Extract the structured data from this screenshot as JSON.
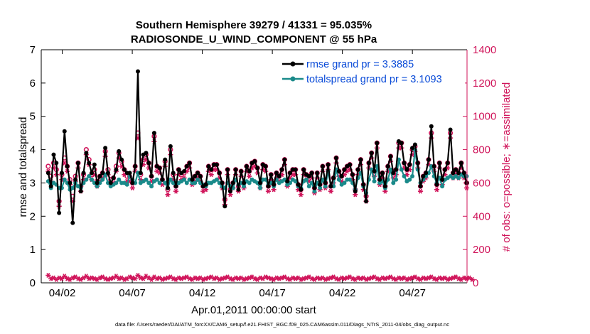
{
  "chart_data": {
    "type": "line",
    "title_line1": "Southern Hemisphere 39279 / 41331 = 95.035%",
    "title_line2": "RADIOSONDE_U_WIND_COMPONENT @ 55 hPa",
    "xlabel": "Apr.01,2011 00:00:00 start",
    "ylabel_left": "rmse and totalspread",
    "ylabel_right": "# of obs: o=possible; ∗=assimilated",
    "x_range": [
      0.5,
      30.9
    ],
    "xtick_days": [
      2,
      7,
      12,
      17,
      22,
      27
    ],
    "xtick_labels": [
      "04/02",
      "04/07",
      "04/12",
      "04/17",
      "04/22",
      "04/27"
    ],
    "ylim_left": [
      0,
      7
    ],
    "yticks_left": [
      "0",
      "1",
      "2",
      "3",
      "4",
      "5",
      "6",
      "7"
    ],
    "ylim_right": [
      0,
      1400
    ],
    "yticks_right": [
      "0",
      "200",
      "400",
      "600",
      "800",
      "1000",
      "1200",
      "1400"
    ],
    "series": [
      {
        "name": "rmse",
        "legend": "rmse grand pr = 3.3885",
        "color": "#000000",
        "values": [
          3.3,
          2.9,
          3.85,
          3.6,
          2.1,
          3.3,
          4.55,
          3.5,
          3.0,
          1.8,
          3.1,
          3.6,
          2.75,
          3.3,
          3.9,
          3.6,
          3.3,
          3.55,
          3.0,
          3.2,
          3.3,
          4.05,
          3.3,
          3.0,
          3.15,
          3.4,
          3.95,
          3.7,
          3.4,
          3.3,
          3.3,
          3.0,
          3.5,
          6.35,
          3.3,
          3.85,
          3.9,
          3.6,
          3.2,
          4.5,
          3.5,
          3.45,
          3.1,
          3.7,
          2.85,
          4.1,
          3.3,
          2.9,
          3.4,
          3.3,
          3.35,
          3.5,
          3.6,
          3.1,
          3.2,
          3.3,
          3.2,
          2.9,
          2.95,
          3.5,
          3.4,
          3.55,
          3.55,
          3.3,
          3.0,
          2.3,
          3.4,
          2.75,
          3.0,
          3.4,
          2.8,
          3.35,
          3.0,
          3.5,
          3.35,
          3.6,
          3.65,
          3.45,
          3.0,
          3.55,
          3.5,
          2.9,
          3.25,
          2.95,
          3.3,
          3.2,
          3.4,
          3.7,
          3.05,
          3.3,
          3.4,
          3.4,
          2.95,
          2.8,
          3.4,
          3.25,
          3.2,
          3.3,
          2.85,
          3.3,
          2.95,
          3.5,
          3.0,
          3.55,
          2.9,
          3.15,
          3.75,
          3.35,
          3.2,
          3.4,
          3.5,
          3.55,
          3.25,
          2.75,
          3.4,
          3.7,
          2.95,
          2.45,
          3.6,
          3.9,
          3.35,
          4.2,
          3.1,
          3.3,
          2.9,
          3.5,
          3.8,
          3.3,
          3.4,
          4.25,
          4.2,
          3.6,
          3.4,
          3.55,
          4.05,
          4.15,
          3.6,
          2.9,
          3.2,
          3.3,
          3.7,
          4.7,
          3.5,
          2.95,
          3.6,
          3.1,
          3.4,
          3.6,
          4.6,
          3.3,
          3.4,
          3.3,
          3.6,
          3.3,
          3.0
        ]
      },
      {
        "name": "totalspread",
        "legend": "totalspread grand pr = 3.1093",
        "color": "#1a8a8a",
        "values": [
          3.05,
          2.85,
          3.0,
          2.95,
          2.85,
          2.85,
          3.1,
          3.0,
          2.8,
          2.85,
          3.0,
          2.9,
          2.85,
          3.0,
          3.1,
          3.2,
          3.1,
          3.0,
          2.9,
          3.0,
          3.1,
          3.25,
          3.0,
          2.9,
          2.95,
          3.0,
          3.1,
          3.0,
          3.0,
          2.95,
          3.2,
          3.1,
          3.0,
          3.3,
          3.0,
          3.05,
          3.1,
          3.0,
          2.9,
          3.05,
          3.1,
          3.0,
          3.1,
          3.0,
          2.85,
          3.1,
          3.0,
          2.9,
          3.0,
          3.05,
          3.1,
          3.0,
          3.1,
          3.0,
          3.0,
          3.1,
          3.0,
          2.95,
          2.9,
          3.0,
          3.0,
          3.05,
          3.1,
          3.0,
          2.9,
          2.85,
          3.0,
          2.9,
          2.85,
          3.1,
          2.95,
          3.0,
          2.9,
          3.05,
          3.0,
          3.1,
          3.05,
          3.0,
          2.85,
          3.1,
          3.1,
          2.95,
          3.0,
          2.9,
          3.1,
          3.0,
          3.05,
          3.1,
          2.95,
          3.0,
          3.1,
          3.05,
          2.9,
          2.85,
          3.05,
          3.1,
          2.9,
          3.0,
          2.75,
          3.0,
          2.85,
          3.1,
          2.9,
          3.35,
          2.9,
          2.9,
          3.4,
          3.1,
          2.95,
          3.0,
          3.1,
          3.1,
          3.0,
          2.8,
          3.15,
          3.3,
          2.9,
          2.7,
          3.1,
          3.4,
          3.05,
          3.5,
          3.0,
          3.05,
          2.85,
          3.1,
          3.4,
          3.0,
          3.1,
          3.7,
          3.4,
          3.2,
          3.05,
          3.1,
          3.2,
          4.0,
          3.4,
          3.0,
          3.1,
          3.2,
          3.3,
          3.5,
          3.2,
          3.0,
          3.15,
          2.9,
          3.1,
          3.15,
          3.2,
          3.15,
          3.2,
          3.15,
          3.25,
          3.2,
          3.2
        ]
      }
    ],
    "obs_counts": {
      "possible": [
        700,
        640,
        720,
        680,
        490,
        650,
        750,
        700,
        620,
        520,
        640,
        720,
        580,
        650,
        800,
        740,
        650,
        680,
        610,
        640,
        660,
        790,
        680,
        620,
        630,
        700,
        780,
        730,
        680,
        640,
        640,
        600,
        700,
        900,
        650,
        740,
        770,
        720,
        640,
        880,
        700,
        690,
        620,
        730,
        560,
        800,
        650,
        580,
        680,
        650,
        660,
        700,
        720,
        620,
        640,
        660,
        640,
        580,
        590,
        700,
        680,
        710,
        710,
        660,
        600,
        500,
        680,
        560,
        600,
        680,
        580,
        670,
        600,
        700,
        670,
        720,
        730,
        690,
        600,
        710,
        700,
        580,
        650,
        590,
        660,
        640,
        680,
        740,
        610,
        660,
        680,
        680,
        590,
        560,
        680,
        650,
        640,
        660,
        570,
        660,
        590,
        700,
        600,
        710,
        580,
        630,
        750,
        670,
        640,
        680,
        700,
        710,
        650,
        560,
        680,
        740,
        590,
        520,
        720,
        780,
        670,
        840,
        620,
        660,
        580,
        700,
        760,
        660,
        680,
        840,
        840,
        720,
        680,
        710,
        800,
        820,
        720,
        580,
        640,
        660,
        740,
        900,
        700,
        590,
        720,
        620,
        680,
        720,
        900,
        660,
        680,
        660,
        720,
        660,
        600
      ],
      "assimilated": [
        670,
        610,
        690,
        650,
        460,
        620,
        720,
        670,
        590,
        490,
        610,
        690,
        550,
        620,
        770,
        710,
        620,
        650,
        580,
        610,
        630,
        760,
        650,
        590,
        600,
        670,
        750,
        700,
        650,
        610,
        610,
        570,
        670,
        870,
        620,
        710,
        740,
        690,
        610,
        850,
        670,
        660,
        590,
        700,
        530,
        770,
        620,
        550,
        650,
        620,
        630,
        670,
        690,
        590,
        610,
        630,
        610,
        550,
        560,
        670,
        650,
        680,
        680,
        630,
        570,
        470,
        650,
        530,
        570,
        650,
        550,
        640,
        570,
        670,
        640,
        690,
        700,
        660,
        570,
        680,
        670,
        550,
        620,
        560,
        630,
        610,
        650,
        710,
        580,
        630,
        650,
        650,
        560,
        530,
        650,
        620,
        610,
        630,
        540,
        630,
        560,
        670,
        570,
        680,
        550,
        600,
        720,
        640,
        610,
        650,
        670,
        680,
        620,
        530,
        650,
        710,
        560,
        490,
        690,
        750,
        640,
        810,
        590,
        630,
        550,
        670,
        730,
        630,
        650,
        810,
        810,
        690,
        650,
        680,
        770,
        790,
        690,
        550,
        610,
        630,
        710,
        870,
        670,
        560,
        690,
        590,
        650,
        690,
        870,
        630,
        650,
        630,
        690,
        630,
        570
      ],
      "rejected": [
        45,
        25,
        30,
        20,
        30,
        25,
        40,
        25,
        20,
        30,
        35,
        25,
        20,
        30,
        40,
        25,
        30,
        25,
        20,
        30,
        35,
        25,
        20,
        25,
        30,
        40,
        25,
        30,
        20,
        25,
        35,
        30,
        25,
        45,
        30,
        25,
        40,
        30,
        20,
        35,
        25,
        30,
        20,
        25,
        30,
        35,
        25,
        20,
        30,
        25,
        30,
        35,
        25,
        20,
        30,
        25,
        30,
        20,
        25,
        30,
        35,
        25,
        30,
        20,
        25,
        30,
        35,
        25,
        20,
        30,
        25,
        30,
        20,
        25,
        30,
        35,
        25,
        20,
        30,
        25,
        35,
        30,
        25,
        20,
        30,
        25,
        30,
        35,
        25,
        20,
        30,
        25,
        30,
        20,
        25,
        30,
        35,
        25,
        20,
        30,
        25,
        30,
        20,
        25,
        30,
        35,
        25,
        20,
        30,
        25,
        30,
        35,
        25,
        20,
        30,
        25,
        30,
        20,
        25,
        30,
        35,
        25,
        20,
        30,
        25,
        30,
        35,
        25,
        20,
        30,
        25,
        30,
        20,
        25,
        30,
        35,
        25,
        20,
        30,
        25,
        30,
        35,
        25,
        20,
        30,
        25,
        30,
        20,
        25,
        30,
        35,
        25,
        20,
        30,
        25,
        30,
        20
      ]
    },
    "colors": {
      "rmse": "#000000",
      "totalspread": "#1a8a8a",
      "obs": "#d0145a",
      "legend_text": "#0a4bd8"
    },
    "legend_position": "top-right",
    "footnote": "data file: /Users/raeder/DAI/ATM_forcXX/CAM6_setup/f.e21.FHIST_BGC.f09_025.CAM6assim.011/Diags_NTrS_2011-04/obs_diag_output.nc"
  }
}
